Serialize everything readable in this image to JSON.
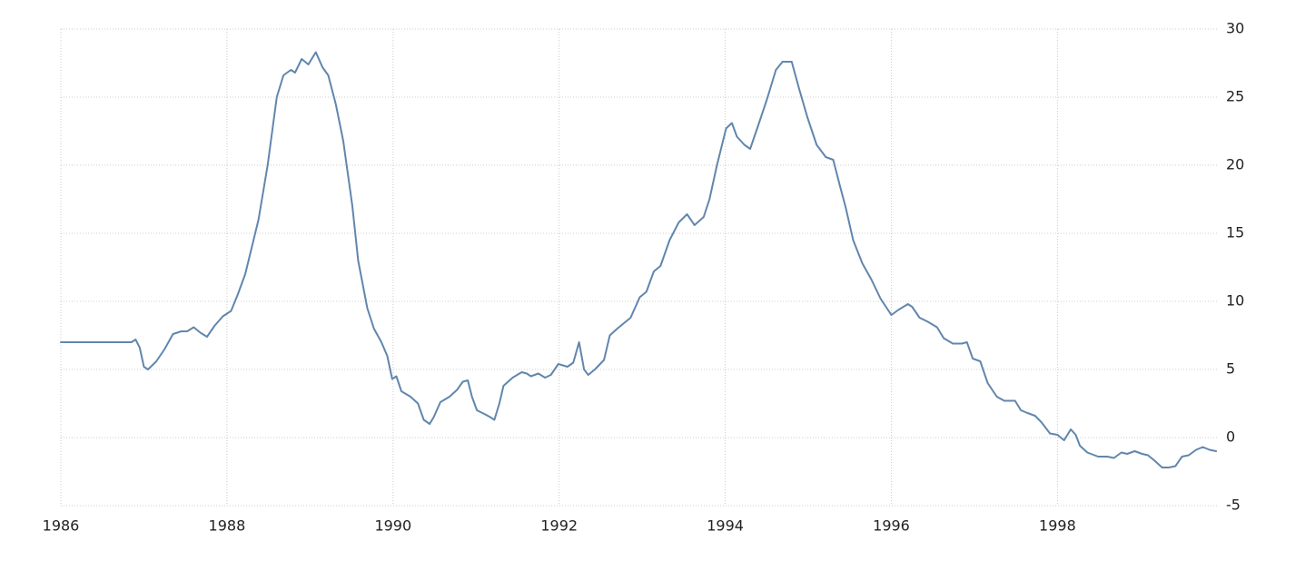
{
  "chart_data": {
    "type": "line",
    "x": [
      1986.0,
      1986.85,
      1986.9,
      1986.95,
      1987.0,
      1987.05,
      1987.15,
      1987.25,
      1987.35,
      1987.45,
      1987.52,
      1987.6,
      1987.68,
      1987.76,
      1987.85,
      1987.95,
      1988.05,
      1988.13,
      1988.22,
      1988.38,
      1988.49,
      1988.6,
      1988.68,
      1988.77,
      1988.82,
      1988.9,
      1988.98,
      1989.07,
      1989.15,
      1989.22,
      1989.31,
      1989.4,
      1989.51,
      1989.58,
      1989.69,
      1989.77,
      1989.86,
      1989.93,
      1989.99,
      1990.04,
      1990.1,
      1990.21,
      1990.3,
      1990.37,
      1990.44,
      1990.49,
      1990.57,
      1990.68,
      1990.77,
      1990.84,
      1990.9,
      1990.95,
      1991.01,
      1991.11,
      1991.17,
      1991.22,
      1991.28,
      1991.33,
      1991.44,
      1991.55,
      1991.61,
      1991.66,
      1991.75,
      1991.83,
      1991.9,
      1991.99,
      1992.1,
      1992.17,
      1992.24,
      1992.3,
      1992.35,
      1992.43,
      1992.54,
      1992.61,
      1992.7,
      1992.86,
      1992.97,
      1993.05,
      1993.14,
      1993.22,
      1993.33,
      1993.44,
      1993.54,
      1993.63,
      1993.74,
      1993.81,
      1993.9,
      1994.01,
      1994.08,
      1994.14,
      1994.23,
      1994.3,
      1994.39,
      1994.5,
      1994.61,
      1994.69,
      1994.8,
      1994.89,
      1994.99,
      1995.1,
      1995.21,
      1995.3,
      1995.38,
      1995.45,
      1995.54,
      1995.65,
      1995.76,
      1995.87,
      1996.0,
      1996.09,
      1996.2,
      1996.25,
      1996.34,
      1996.44,
      1996.55,
      1996.63,
      1996.74,
      1996.85,
      1996.91,
      1996.98,
      1997.07,
      1997.16,
      1997.27,
      1997.36,
      1997.49,
      1997.56,
      1997.64,
      1997.73,
      1997.81,
      1997.91,
      1998.0,
      1998.08,
      1998.16,
      1998.22,
      1998.27,
      1998.36,
      1998.49,
      1998.6,
      1998.68,
      1998.77,
      1998.84,
      1998.93,
      1999.02,
      1999.09,
      1999.17,
      1999.26,
      1999.34,
      1999.42,
      1999.5,
      1999.58,
      1999.67,
      1999.75,
      1999.83,
      1999.91
    ],
    "series": [
      {
        "color": "#6186ad",
        "values": [
          7,
          7,
          7.2,
          6.6,
          5.2,
          5.0,
          5.6,
          6.5,
          7.6,
          7.8,
          7.8,
          8.1,
          7.7,
          7.4,
          8.2,
          8.9,
          9.3,
          10.5,
          12,
          16,
          20,
          25,
          26.6,
          27,
          26.8,
          27.8,
          27.4,
          28.3,
          27.2,
          26.6,
          24.5,
          21.8,
          17,
          13,
          9.5,
          8,
          7,
          6,
          4.3,
          4.5,
          3.4,
          3.0,
          2.5,
          1.3,
          1.0,
          1.5,
          2.6,
          3.0,
          3.5,
          4.1,
          4.2,
          3.0,
          2.0,
          1.7,
          1.5,
          1.3,
          2.5,
          3.8,
          4.4,
          4.8,
          4.7,
          4.5,
          4.7,
          4.4,
          4.6,
          5.4,
          5.2,
          5.5,
          7.0,
          5.0,
          4.6,
          5.0,
          5.7,
          7.5,
          8.0,
          8.8,
          10.3,
          10.7,
          12.2,
          12.6,
          14.5,
          15.8,
          16.4,
          15.6,
          16.2,
          17.5,
          20,
          22.7,
          23.1,
          22.1,
          21.5,
          21.2,
          22.8,
          24.8,
          27,
          27.6,
          27.6,
          25.6,
          23.5,
          21.5,
          20.6,
          20.4,
          18.5,
          16.9,
          14.5,
          12.8,
          11.6,
          10.2,
          9.0,
          9.4,
          9.8,
          9.6,
          8.8,
          8.5,
          8.1,
          7.3,
          6.9,
          6.9,
          7.0,
          5.8,
          5.6,
          4.0,
          3.0,
          2.7,
          2.7,
          2.0,
          1.8,
          1.6,
          1.1,
          0.3,
          0.2,
          -0.2,
          0.6,
          0.2,
          -0.6,
          -1.1,
          -1.4,
          -1.4,
          -1.5,
          -1.1,
          -1.2,
          -1.0,
          -1.2,
          -1.3,
          -1.7,
          -2.2,
          -2.2,
          -2.1,
          -1.4,
          -1.3,
          -0.9,
          -0.7,
          -0.9,
          -1.0
        ]
      }
    ],
    "xlim": [
      1986,
      1999.92
    ],
    "xticks": [
      1986,
      1988,
      1990,
      1992,
      1994,
      1996,
      1998
    ],
    "ylim": [
      -5,
      30
    ],
    "yticks": [
      -5,
      0,
      5,
      10,
      15,
      20,
      25,
      30
    ],
    "grid": true
  }
}
